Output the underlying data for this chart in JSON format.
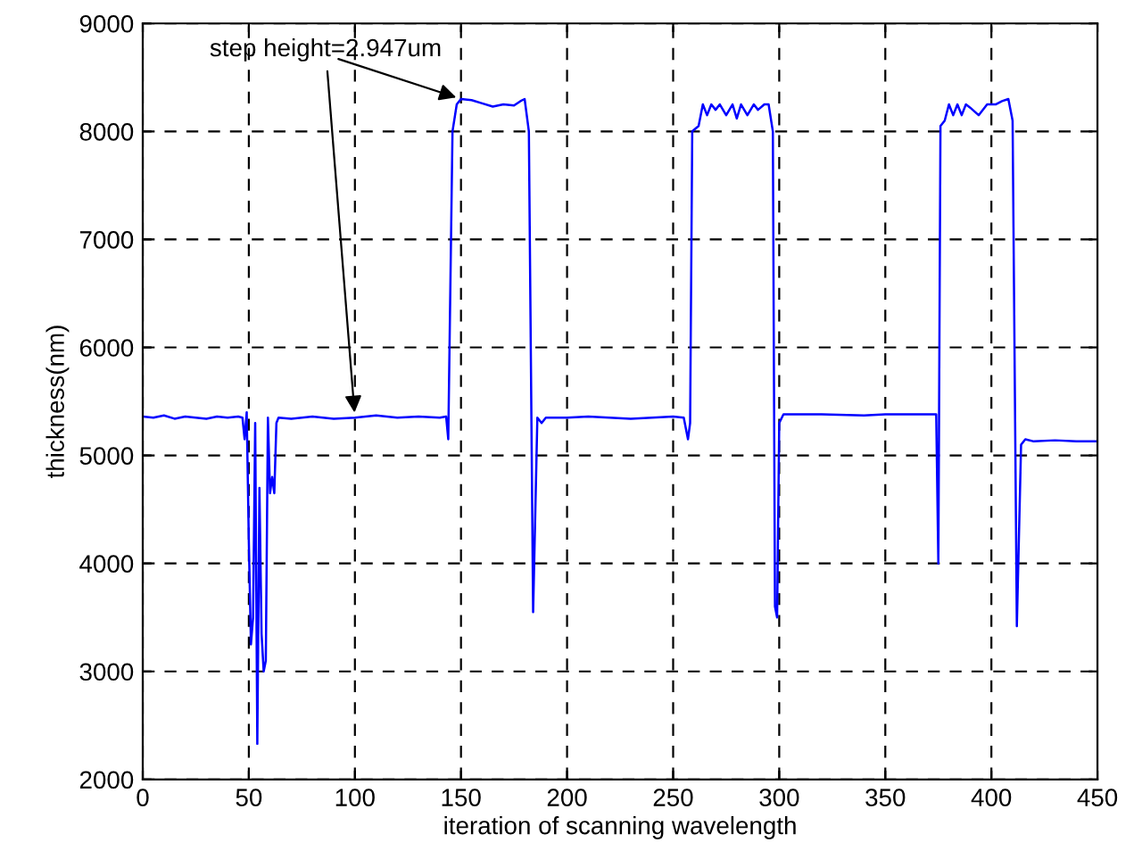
{
  "chart_data": {
    "type": "line",
    "xlabel": "iteration of scanning wavelength",
    "ylabel": "thickness(nm)",
    "xlim": [
      0,
      450
    ],
    "ylim": [
      2000,
      9000
    ],
    "xticks": [
      0,
      50,
      100,
      150,
      200,
      250,
      300,
      350,
      400,
      450
    ],
    "yticks": [
      2000,
      3000,
      4000,
      5000,
      6000,
      7000,
      8000,
      9000
    ],
    "grid": true,
    "line_style": "solid",
    "marker": "none",
    "annotations": [
      {
        "text": "step height=2.947um",
        "x": 100,
        "y": 5350
      }
    ],
    "series": [
      {
        "color": "#0000ff",
        "x": [
          0,
          5,
          10,
          15,
          20,
          25,
          30,
          35,
          40,
          45,
          47,
          48,
          49,
          50,
          51,
          52,
          53,
          54,
          55,
          56,
          57,
          58,
          59,
          60,
          61,
          62,
          63,
          64,
          70,
          80,
          90,
          100,
          110,
          120,
          130,
          140,
          143,
          144,
          146,
          148,
          150,
          155,
          160,
          165,
          170,
          175,
          178,
          180,
          182,
          184,
          186,
          188,
          190,
          200,
          210,
          220,
          230,
          240,
          250,
          255,
          257,
          258,
          259,
          262,
          264,
          266,
          268,
          270,
          272,
          275,
          278,
          280,
          282,
          285,
          288,
          290,
          293,
          295,
          297,
          298,
          299,
          300,
          302,
          320,
          340,
          350,
          360,
          370,
          374,
          375,
          376,
          378,
          380,
          382,
          384,
          386,
          388,
          390,
          394,
          398,
          402,
          405,
          408,
          410,
          412,
          414,
          416,
          420,
          430,
          440,
          450
        ],
        "values": [
          5360,
          5350,
          5370,
          5340,
          5360,
          5350,
          5340,
          5360,
          5350,
          5360,
          5350,
          5150,
          5400,
          4200,
          3250,
          3500,
          5300,
          2330,
          4700,
          3350,
          3000,
          3100,
          5350,
          4650,
          4800,
          4650,
          5300,
          5350,
          5340,
          5360,
          5340,
          5350,
          5370,
          5350,
          5360,
          5350,
          5360,
          5150,
          8000,
          8250,
          8300,
          8290,
          8260,
          8230,
          8250,
          8240,
          8280,
          8300,
          8000,
          3550,
          5350,
          5300,
          5350,
          5350,
          5360,
          5350,
          5340,
          5350,
          5360,
          5350,
          5150,
          5300,
          8000,
          8050,
          8250,
          8150,
          8250,
          8200,
          8250,
          8150,
          8250,
          8120,
          8250,
          8150,
          8250,
          8200,
          8250,
          8250,
          8000,
          3600,
          3500,
          5300,
          5380,
          5380,
          5370,
          5380,
          5380,
          5380,
          5380,
          4000,
          8050,
          8100,
          8250,
          8150,
          8250,
          8150,
          8250,
          8220,
          8150,
          8250,
          8250,
          8280,
          8300,
          8100,
          3420,
          5100,
          5150,
          5130,
          5140,
          5130,
          5130
        ]
      }
    ]
  }
}
